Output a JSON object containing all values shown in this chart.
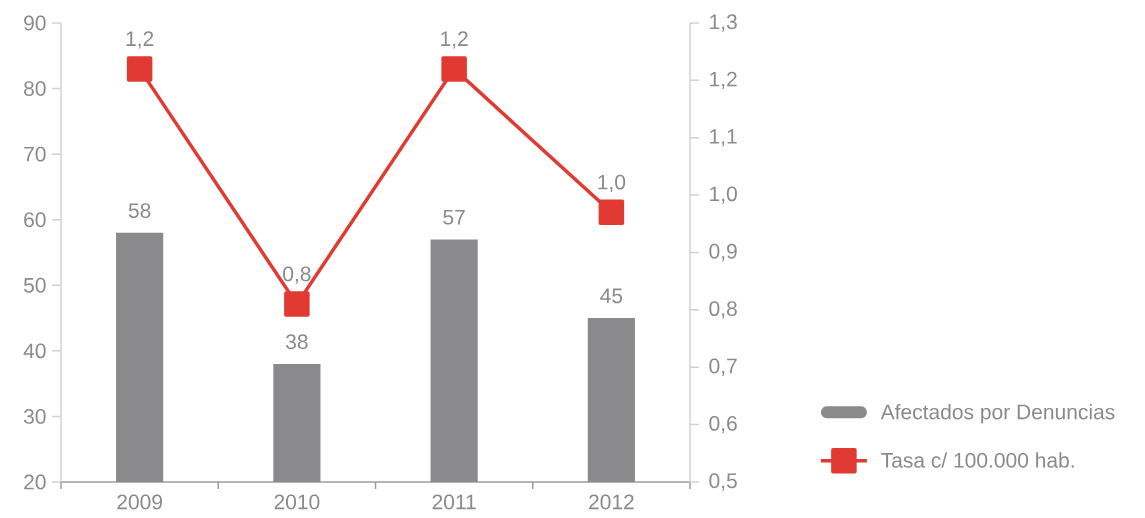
{
  "chart_data": {
    "type": "bar",
    "categories": [
      "2009",
      "2010",
      "2011",
      "2012"
    ],
    "series": [
      {
        "name": "Afectados por Denuncias",
        "color": "#8a8a8c",
        "values": [
          58,
          38,
          57,
          45
        ],
        "value_labels": [
          "58",
          "38",
          "57",
          "45"
        ]
      },
      {
        "name": "Tasa c/ 100.000 hab.",
        "type": "line",
        "axis": "y2",
        "color": "#e03a33",
        "values": [
          1.22,
          0.81,
          1.22,
          0.97
        ],
        "value_labels": [
          "1,2",
          "0,8",
          "1,2",
          "1,0"
        ]
      }
    ],
    "ylim": [
      20,
      90
    ],
    "yticks": [
      20,
      30,
      40,
      50,
      60,
      70,
      80,
      90
    ],
    "y2lim": [
      0.5,
      1.3
    ],
    "y2ticks": [
      {
        "value": 0.5,
        "label": "0,5"
      },
      {
        "value": 0.6,
        "label": "0,6"
      },
      {
        "value": 0.7,
        "label": "0,7"
      },
      {
        "value": 0.8,
        "label": "0,8"
      },
      {
        "value": 0.9,
        "label": "0,9"
      },
      {
        "value": 1.0,
        "label": "1,0"
      },
      {
        "value": 1.1,
        "label": "1,1"
      },
      {
        "value": 1.2,
        "label": "1,2"
      },
      {
        "value": 1.3,
        "label": "1,3"
      }
    ],
    "legend": "bottom right",
    "marker": "square",
    "line_style": "solid"
  }
}
